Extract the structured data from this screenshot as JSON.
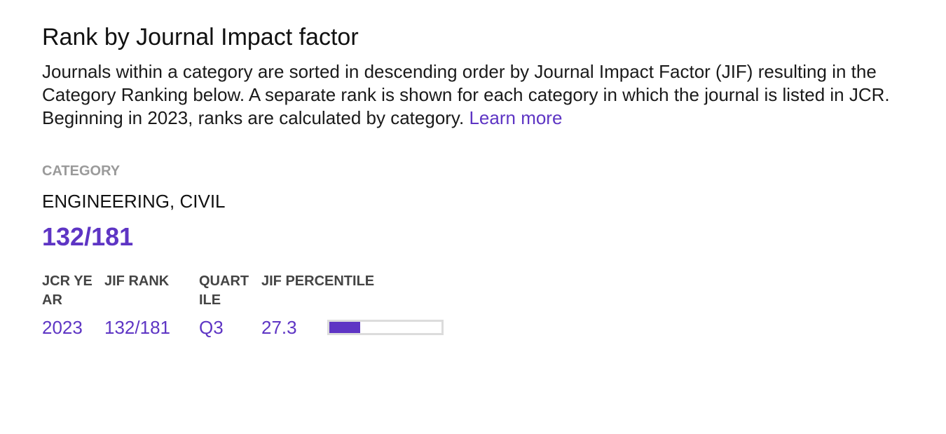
{
  "header": {
    "title": "Rank by Journal Impact factor",
    "description": "Journals within a category are sorted in descending order by Journal Impact Factor (JIF) resulting in the Category Ranking below. A separate rank is shown for each category in which the journal is listed in JCR. Beginning in 2023, ranks are calculated by category.",
    "link": "Learn more"
  },
  "category": {
    "label": "CATEGORY",
    "name": "ENGINEERING, CIVIL",
    "rank": "132/181"
  },
  "table": {
    "columns": [
      "JCR YEAR",
      "JIF RANK",
      "QUARTILE",
      "JIF PERCENTILE"
    ],
    "rows": [
      [
        "2023",
        "132/181",
        "Q3",
        27.3
      ]
    ]
  }
}
